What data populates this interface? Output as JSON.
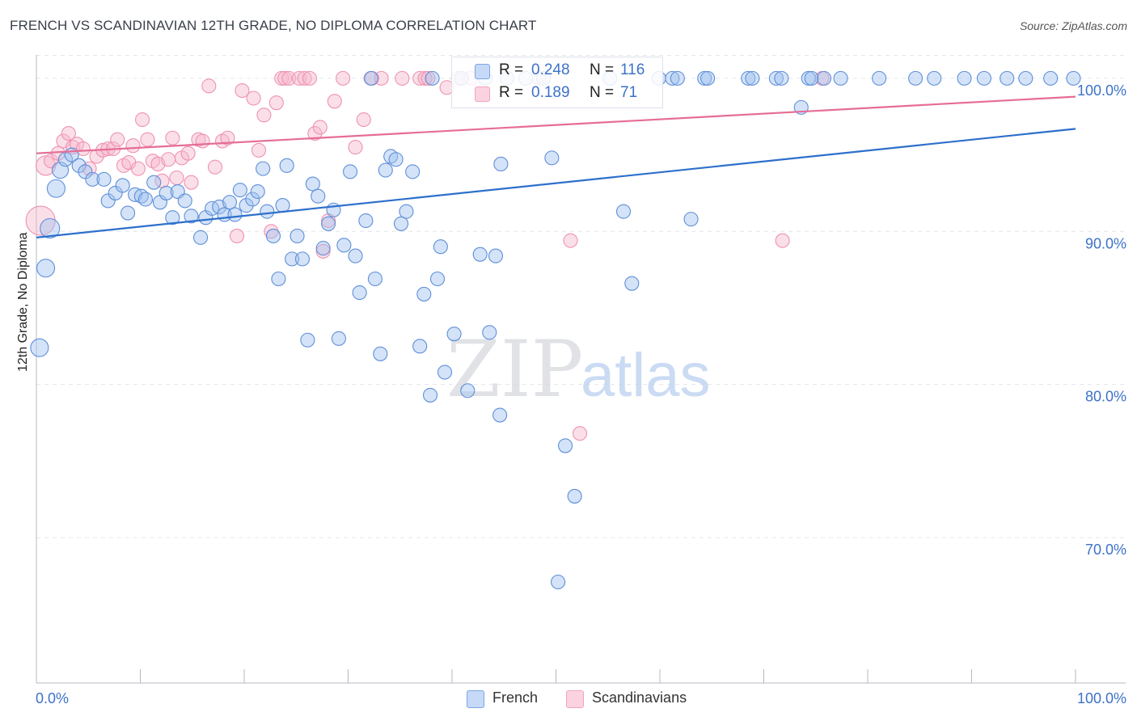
{
  "header": {
    "title": "FRENCH VS SCANDINAVIAN 12TH GRADE, NO DIPLOMA CORRELATION CHART",
    "source": "Source: ZipAtlas.com"
  },
  "watermark": {
    "zip": "ZIP",
    "atlas": "atlas"
  },
  "legend": {
    "french": {
      "r_label": "R =",
      "r_value": "0.248",
      "n_label": "N =",
      "n_value": "116"
    },
    "scandinavians": {
      "r_label": "R =",
      "r_value": "0.189",
      "n_label": "N =",
      "n_value": "71"
    }
  },
  "chart_data": {
    "type": "scatter",
    "title": "FRENCH VS SCANDINAVIAN 12TH GRADE, NO DIPLOMA CORRELATION CHART",
    "xlabel": "",
    "ylabel": "12th Grade, No Diploma",
    "xlim": [
      0,
      100
    ],
    "ylim": [
      60.5,
      102
    ],
    "x_tick_labels": [
      "0.0%",
      "100.0%"
    ],
    "y_ticks": [
      70,
      80,
      90,
      100
    ],
    "y_tick_labels": [
      "70.0%",
      "80.0%",
      "90.0%",
      "100.0%"
    ],
    "grid": true,
    "legend_position": "bottom",
    "colors": {
      "french": "#7ba6e6",
      "french_line": "#2d6fcc",
      "scandinavians": "#f2a3bd",
      "scandinavians_line": "#e66d95"
    },
    "series": [
      {
        "name": "French",
        "r": 0.248,
        "n": 116,
        "trend": {
          "x": [
            0,
            100
          ],
          "y": [
            89.6,
            96.7
          ]
        },
        "points": [
          [
            0.3,
            82.4
          ],
          [
            0.9,
            87.6
          ],
          [
            1.3,
            90.2
          ],
          [
            1.9,
            92.8
          ],
          [
            2.3,
            94
          ],
          [
            2.8,
            94.7
          ],
          [
            3.4,
            95
          ],
          [
            4.1,
            94.3
          ],
          [
            4.7,
            93.9
          ],
          [
            5.4,
            93.4
          ],
          [
            6.5,
            93.4
          ],
          [
            6.9,
            92
          ],
          [
            7.6,
            92.5
          ],
          [
            8.3,
            93
          ],
          [
            8.8,
            91.2
          ],
          [
            9.5,
            92.4
          ],
          [
            10.1,
            92.3
          ],
          [
            10.5,
            92.1
          ],
          [
            11.3,
            93.2
          ],
          [
            11.9,
            91.9
          ],
          [
            12.5,
            92.5
          ],
          [
            13.1,
            90.9
          ],
          [
            13.6,
            92.6
          ],
          [
            14.3,
            92
          ],
          [
            14.9,
            91
          ],
          [
            15.8,
            89.6
          ],
          [
            16.3,
            90.9
          ],
          [
            16.9,
            91.5
          ],
          [
            17.6,
            91.6
          ],
          [
            18.1,
            91.1
          ],
          [
            18.6,
            91.9
          ],
          [
            19.1,
            91.1
          ],
          [
            19.6,
            92.7
          ],
          [
            20.2,
            91.7
          ],
          [
            20.8,
            92.1
          ],
          [
            21.3,
            92.6
          ],
          [
            21.8,
            94.1
          ],
          [
            22.2,
            91.3
          ],
          [
            22.8,
            89.7
          ],
          [
            23.3,
            86.9
          ],
          [
            23.7,
            91.7
          ],
          [
            24.1,
            94.3
          ],
          [
            24.6,
            88.2
          ],
          [
            25.1,
            89.7
          ],
          [
            25.6,
            88.2
          ],
          [
            26.1,
            82.9
          ],
          [
            26.6,
            93.1
          ],
          [
            27.1,
            92.3
          ],
          [
            27.6,
            88.9
          ],
          [
            28.1,
            90.5
          ],
          [
            28.6,
            91.4
          ],
          [
            29.1,
            83
          ],
          [
            29.6,
            89.1
          ],
          [
            30.2,
            93.9
          ],
          [
            30.7,
            88.4
          ],
          [
            31.1,
            86
          ],
          [
            31.7,
            90.7
          ],
          [
            32.2,
            100
          ],
          [
            32.6,
            86.9
          ],
          [
            33.1,
            82
          ],
          [
            33.6,
            94
          ],
          [
            34.1,
            94.9
          ],
          [
            34.6,
            94.7
          ],
          [
            35.1,
            90.5
          ],
          [
            35.6,
            91.3
          ],
          [
            36.2,
            93.9
          ],
          [
            36.9,
            82.5
          ],
          [
            37.3,
            85.9
          ],
          [
            38.1,
            100
          ],
          [
            38.6,
            86.9
          ],
          [
            38.9,
            89
          ],
          [
            39.3,
            80.8
          ],
          [
            40.2,
            83.3
          ],
          [
            41.5,
            79.6
          ],
          [
            40.9,
            100
          ],
          [
            42.7,
            88.5
          ],
          [
            43.2,
            100
          ],
          [
            43.6,
            83.4
          ],
          [
            44.2,
            88.4
          ],
          [
            44.7,
            94.4
          ],
          [
            45.3,
            100
          ],
          [
            47.1,
            100
          ],
          [
            48.8,
            100
          ],
          [
            49.6,
            94.8
          ],
          [
            50.2,
            67.1
          ],
          [
            50.9,
            76
          ],
          [
            51.8,
            72.7
          ],
          [
            37.9,
            79.3
          ],
          [
            44.6,
            78
          ],
          [
            55.2,
            100
          ],
          [
            56.5,
            91.3
          ],
          [
            57.3,
            86.6
          ],
          [
            59.9,
            100
          ],
          [
            61.2,
            100
          ],
          [
            61.7,
            100
          ],
          [
            63,
            90.8
          ],
          [
            64.3,
            100
          ],
          [
            64.6,
            100
          ],
          [
            68.5,
            100
          ],
          [
            68.9,
            100
          ],
          [
            71.2,
            100
          ],
          [
            71.7,
            100
          ],
          [
            73.6,
            98.1
          ],
          [
            74.3,
            100
          ],
          [
            74.6,
            100
          ],
          [
            75.8,
            100
          ],
          [
            77.4,
            100
          ],
          [
            81.1,
            100
          ],
          [
            84.6,
            100
          ],
          [
            86.4,
            100
          ],
          [
            89.3,
            100
          ],
          [
            91.2,
            100
          ],
          [
            93.4,
            100
          ],
          [
            95.2,
            100
          ],
          [
            97.6,
            100
          ],
          [
            99.8,
            100
          ]
        ]
      },
      {
        "name": "Scandinavians",
        "r": 0.189,
        "n": 71,
        "trend": {
          "x": [
            0,
            100
          ],
          "y": [
            95.1,
            98.8
          ]
        },
        "points": [
          [
            0.4,
            90.7
          ],
          [
            0.9,
            94.3
          ],
          [
            1.4,
            94.6
          ],
          [
            2.1,
            95.1
          ],
          [
            2.6,
            95.9
          ],
          [
            3.1,
            96.4
          ],
          [
            3.5,
            95.5
          ],
          [
            3.9,
            95.7
          ],
          [
            4.5,
            95.4
          ],
          [
            5.1,
            94.1
          ],
          [
            5.8,
            94.9
          ],
          [
            6.4,
            95.3
          ],
          [
            6.9,
            95.4
          ],
          [
            7.4,
            95.4
          ],
          [
            7.8,
            96
          ],
          [
            8.4,
            94.3
          ],
          [
            8.9,
            94.5
          ],
          [
            9.3,
            95.6
          ],
          [
            9.8,
            94.1
          ],
          [
            10.2,
            97.3
          ],
          [
            10.7,
            96
          ],
          [
            11.2,
            94.6
          ],
          [
            11.7,
            94.4
          ],
          [
            12.1,
            93.3
          ],
          [
            12.7,
            94.7
          ],
          [
            13.1,
            96.1
          ],
          [
            13.5,
            93.5
          ],
          [
            14,
            94.8
          ],
          [
            14.6,
            95.1
          ],
          [
            14.9,
            93.2
          ],
          [
            15.6,
            96
          ],
          [
            16,
            95.9
          ],
          [
            16.6,
            99.5
          ],
          [
            17.2,
            94.2
          ],
          [
            17.9,
            95.9
          ],
          [
            18.4,
            96.1
          ],
          [
            19.3,
            89.7
          ],
          [
            19.8,
            99.2
          ],
          [
            20.9,
            98.7
          ],
          [
            21.4,
            95.3
          ],
          [
            21.9,
            97.6
          ],
          [
            22.6,
            90
          ],
          [
            23.1,
            98.4
          ],
          [
            23.6,
            100
          ],
          [
            23.9,
            100
          ],
          [
            24.3,
            100
          ],
          [
            25.3,
            100
          ],
          [
            25.8,
            100
          ],
          [
            26.3,
            100
          ],
          [
            26.8,
            96.4
          ],
          [
            27.3,
            96.8
          ],
          [
            27.6,
            88.7
          ],
          [
            28.1,
            90.7
          ],
          [
            28.7,
            98.5
          ],
          [
            29.5,
            100
          ],
          [
            30.7,
            95.5
          ],
          [
            31.5,
            97.3
          ],
          [
            32.3,
            100
          ],
          [
            33.2,
            100
          ],
          [
            35.2,
            100
          ],
          [
            36.9,
            100
          ],
          [
            37.4,
            100
          ],
          [
            37.7,
            100
          ],
          [
            39.5,
            99.4
          ],
          [
            40.6,
            100
          ],
          [
            41.8,
            100
          ],
          [
            48.4,
            100
          ],
          [
            51.4,
            89.4
          ],
          [
            52.3,
            76.8
          ],
          [
            71.8,
            89.4
          ],
          [
            75.6,
            100
          ]
        ]
      }
    ]
  },
  "bottom_legend": {
    "french": "French",
    "scandinavians": "Scandinavians"
  }
}
